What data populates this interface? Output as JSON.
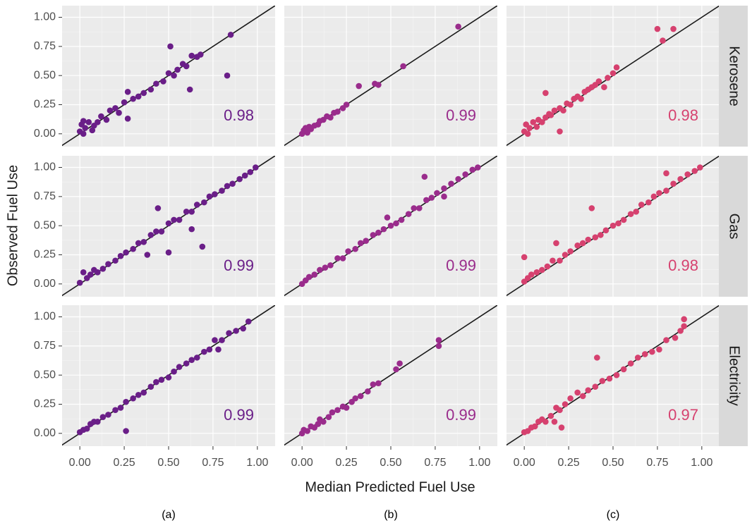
{
  "y_label": "Observed Fuel Use",
  "x_label": "Median Predicted Fuel Use",
  "row_labels": [
    "Kerosene",
    "Gas",
    "Electricity"
  ],
  "column_labels": [
    "(a)",
    "(b)",
    "(c)"
  ],
  "chart_data": [
    {
      "type": "scatter",
      "color": "#6a1e88",
      "annotation": "0.98",
      "x": [
        0,
        0.01,
        0.02,
        0.03,
        0.05,
        0.07,
        0.08,
        0.1,
        0.12,
        0.15,
        0.17,
        0.2,
        0.22,
        0.25,
        0.27,
        0.3,
        0.33,
        0.36,
        0.4,
        0.43,
        0.47,
        0.5,
        0.53,
        0.55,
        0.58,
        0.6,
        0.62,
        0.63,
        0.66,
        0.68,
        0.51,
        0.83,
        0.85,
        0.27,
        0.02
      ],
      "values": [
        0.02,
        0.08,
        0,
        0.05,
        0.1,
        0.03,
        0.07,
        0.1,
        0.15,
        0.12,
        0.2,
        0.22,
        0.18,
        0.27,
        0.36,
        0.3,
        0.32,
        0.35,
        0.38,
        0.43,
        0.45,
        0.52,
        0.5,
        0.55,
        0.6,
        0.58,
        0.38,
        0.67,
        0.66,
        0.68,
        0.75,
        0.5,
        0.85,
        0.13,
        0.11
      ],
      "xlim": [
        -0.1,
        1.1
      ],
      "ylim": [
        -0.11,
        1.1
      ],
      "xticks": [
        {
          "value": 0,
          "label": "0.00"
        },
        {
          "value": 0.25,
          "label": "0.25"
        },
        {
          "value": 0.5,
          "label": "0.50"
        },
        {
          "value": 0.75,
          "label": "0.75"
        },
        {
          "value": 1,
          "label": "1.00"
        }
      ],
      "yticks": [
        {
          "value": 0,
          "label": "0.00"
        },
        {
          "value": 0.25,
          "label": "0.25"
        },
        {
          "value": 0.5,
          "label": "0.50"
        },
        {
          "value": 0.75,
          "label": "0.75"
        },
        {
          "value": 1,
          "label": "1.00"
        }
      ]
    },
    {
      "type": "scatter",
      "color": "#9a2c8c",
      "annotation": "0.99",
      "x": [
        0,
        0.01,
        0.02,
        0.03,
        0.04,
        0.05,
        0.07,
        0.09,
        0.1,
        0.12,
        0.14,
        0.16,
        0.18,
        0.2,
        0.23,
        0.25,
        0.32,
        0.41,
        0.43,
        0.57,
        0.88
      ],
      "values": [
        0,
        0.03,
        0.05,
        0.01,
        0.06,
        0.04,
        0.07,
        0.08,
        0.11,
        0.12,
        0.15,
        0.14,
        0.18,
        0.19,
        0.22,
        0.25,
        0.41,
        0.43,
        0.42,
        0.58,
        0.92
      ],
      "xlim": [
        -0.1,
        1.1
      ],
      "ylim": [
        -0.11,
        1.1
      ],
      "xticks": [
        {
          "value": 0,
          "label": "0.00"
        },
        {
          "value": 0.25,
          "label": "0.25"
        },
        {
          "value": 0.5,
          "label": "0.50"
        },
        {
          "value": 0.75,
          "label": "0.75"
        },
        {
          "value": 1,
          "label": "1.00"
        }
      ],
      "yticks": [
        {
          "value": 0,
          "label": "0.00"
        },
        {
          "value": 0.25,
          "label": "0.25"
        },
        {
          "value": 0.5,
          "label": "0.50"
        },
        {
          "value": 0.75,
          "label": "0.75"
        },
        {
          "value": 1,
          "label": "1.00"
        }
      ]
    },
    {
      "type": "scatter",
      "color": "#d6416f",
      "annotation": "0.98",
      "x": [
        0,
        0.01,
        0.02,
        0.03,
        0.05,
        0.07,
        0.08,
        0.1,
        0.12,
        0.14,
        0.15,
        0.17,
        0.2,
        0.22,
        0.24,
        0.26,
        0.28,
        0.3,
        0.32,
        0.34,
        0.36,
        0.38,
        0.4,
        0.42,
        0.45,
        0.47,
        0.5,
        0.52,
        0.2,
        0.12,
        0.75,
        0.78,
        0.84
      ],
      "values": [
        0.02,
        0.08,
        0,
        0.05,
        0.1,
        0.06,
        0.12,
        0.1,
        0.14,
        0.17,
        0.16,
        0.2,
        0.22,
        0.2,
        0.26,
        0.25,
        0.3,
        0.32,
        0.3,
        0.36,
        0.38,
        0.4,
        0.42,
        0.45,
        0.4,
        0.48,
        0.52,
        0.57,
        0.02,
        0.35,
        0.9,
        0.8,
        0.9
      ],
      "xlim": [
        -0.1,
        1.1
      ],
      "ylim": [
        -0.11,
        1.1
      ],
      "xticks": [
        {
          "value": 0,
          "label": "0.00"
        },
        {
          "value": 0.25,
          "label": "0.25"
        },
        {
          "value": 0.5,
          "label": "0.50"
        },
        {
          "value": 0.75,
          "label": "0.75"
        },
        {
          "value": 1,
          "label": "1.00"
        }
      ],
      "yticks": [
        {
          "value": 0,
          "label": "0.00"
        },
        {
          "value": 0.25,
          "label": "0.25"
        },
        {
          "value": 0.5,
          "label": "0.50"
        },
        {
          "value": 0.75,
          "label": "0.75"
        },
        {
          "value": 1,
          "label": "1.00"
        }
      ]
    },
    {
      "type": "scatter",
      "color": "#6a1e88",
      "annotation": "0.99",
      "x": [
        0,
        0.02,
        0.04,
        0.06,
        0.08,
        0.1,
        0.13,
        0.16,
        0.2,
        0.23,
        0.26,
        0.3,
        0.33,
        0.36,
        0.4,
        0.43,
        0.46,
        0.5,
        0.53,
        0.56,
        0.6,
        0.63,
        0.66,
        0.7,
        0.73,
        0.76,
        0.8,
        0.83,
        0.86,
        0.9,
        0.93,
        0.96,
        0.99,
        0.44,
        0.69,
        0.5,
        0.38,
        0.63
      ],
      "values": [
        0.01,
        0.1,
        0.05,
        0.08,
        0.12,
        0.1,
        0.13,
        0.17,
        0.2,
        0.24,
        0.27,
        0.3,
        0.35,
        0.36,
        0.42,
        0.45,
        0.45,
        0.52,
        0.55,
        0.55,
        0.62,
        0.62,
        0.68,
        0.7,
        0.75,
        0.77,
        0.8,
        0.84,
        0.86,
        0.9,
        0.93,
        0.96,
        1,
        0.65,
        0.32,
        0.27,
        0.25,
        0.47
      ],
      "xlim": [
        -0.1,
        1.1
      ],
      "ylim": [
        -0.11,
        1.1
      ],
      "xticks": [
        {
          "value": 0,
          "label": "0.00"
        },
        {
          "value": 0.25,
          "label": "0.25"
        },
        {
          "value": 0.5,
          "label": "0.50"
        },
        {
          "value": 0.75,
          "label": "0.75"
        },
        {
          "value": 1,
          "label": "1.00"
        }
      ],
      "yticks": [
        {
          "value": 0,
          "label": "0.00"
        },
        {
          "value": 0.25,
          "label": "0.25"
        },
        {
          "value": 0.5,
          "label": "0.50"
        },
        {
          "value": 0.75,
          "label": "0.75"
        },
        {
          "value": 1,
          "label": "1.00"
        }
      ]
    },
    {
      "type": "scatter",
      "color": "#9a2c8c",
      "annotation": "0.99",
      "x": [
        0,
        0.02,
        0.04,
        0.07,
        0.1,
        0.13,
        0.16,
        0.2,
        0.23,
        0.26,
        0.3,
        0.33,
        0.36,
        0.4,
        0.43,
        0.46,
        0.5,
        0.53,
        0.56,
        0.6,
        0.63,
        0.66,
        0.7,
        0.73,
        0.76,
        0.8,
        0.84,
        0.88,
        0.92,
        0.96,
        0.99,
        0.69,
        0.8,
        0.48
      ],
      "values": [
        0,
        0.03,
        0.06,
        0.08,
        0.12,
        0.14,
        0.16,
        0.22,
        0.22,
        0.28,
        0.3,
        0.35,
        0.37,
        0.42,
        0.44,
        0.47,
        0.5,
        0.52,
        0.55,
        0.6,
        0.65,
        0.65,
        0.72,
        0.74,
        0.78,
        0.82,
        0.86,
        0.9,
        0.94,
        0.98,
        1,
        0.92,
        0.75,
        0.57
      ],
      "xlim": [
        -0.1,
        1.1
      ],
      "ylim": [
        -0.11,
        1.1
      ],
      "xticks": [
        {
          "value": 0,
          "label": "0.00"
        },
        {
          "value": 0.25,
          "label": "0.25"
        },
        {
          "value": 0.5,
          "label": "0.50"
        },
        {
          "value": 0.75,
          "label": "0.75"
        },
        {
          "value": 1,
          "label": "1.00"
        }
      ],
      "yticks": [
        {
          "value": 0,
          "label": "0.00"
        },
        {
          "value": 0.25,
          "label": "0.25"
        },
        {
          "value": 0.5,
          "label": "0.50"
        },
        {
          "value": 0.75,
          "label": "0.75"
        },
        {
          "value": 1,
          "label": "1.00"
        }
      ]
    },
    {
      "type": "scatter",
      "color": "#d6416f",
      "annotation": "0.98",
      "x": [
        0,
        0.02,
        0.04,
        0.07,
        0.1,
        0.13,
        0.16,
        0.2,
        0.23,
        0.26,
        0.3,
        0.33,
        0.36,
        0.4,
        0.43,
        0.46,
        0.5,
        0.53,
        0.56,
        0.6,
        0.63,
        0.66,
        0.7,
        0.73,
        0.76,
        0.8,
        0.84,
        0.88,
        0.92,
        0.96,
        0.99,
        0.0,
        0.38,
        0.8,
        0.18
      ],
      "values": [
        0.02,
        0.05,
        0.08,
        0.1,
        0.12,
        0.15,
        0.2,
        0.2,
        0.25,
        0.28,
        0.33,
        0.35,
        0.38,
        0.4,
        0.42,
        0.46,
        0.5,
        0.52,
        0.55,
        0.6,
        0.62,
        0.68,
        0.7,
        0.75,
        0.78,
        0.8,
        0.86,
        0.9,
        0.94,
        0.97,
        1,
        0.23,
        0.65,
        0.95,
        0.35
      ],
      "xlim": [
        -0.1,
        1.1
      ],
      "ylim": [
        -0.11,
        1.1
      ],
      "xticks": [
        {
          "value": 0,
          "label": "0.00"
        },
        {
          "value": 0.25,
          "label": "0.25"
        },
        {
          "value": 0.5,
          "label": "0.50"
        },
        {
          "value": 0.75,
          "label": "0.75"
        },
        {
          "value": 1,
          "label": "1.00"
        }
      ],
      "yticks": [
        {
          "value": 0,
          "label": "0.00"
        },
        {
          "value": 0.25,
          "label": "0.25"
        },
        {
          "value": 0.5,
          "label": "0.50"
        },
        {
          "value": 0.75,
          "label": "0.75"
        },
        {
          "value": 1,
          "label": "1.00"
        }
      ]
    },
    {
      "type": "scatter",
      "color": "#6a1e88",
      "annotation": "0.99",
      "x": [
        0,
        0.02,
        0.04,
        0.06,
        0.08,
        0.1,
        0.13,
        0.16,
        0.2,
        0.23,
        0.26,
        0.3,
        0.33,
        0.36,
        0.4,
        0.43,
        0.46,
        0.5,
        0.53,
        0.56,
        0.6,
        0.63,
        0.66,
        0.7,
        0.73,
        0.76,
        0.8,
        0.84,
        0.88,
        0.92,
        0.95,
        0.26,
        0.78
      ],
      "values": [
        0.01,
        0.03,
        0.04,
        0.08,
        0.1,
        0.1,
        0.14,
        0.16,
        0.2,
        0.22,
        0.27,
        0.3,
        0.33,
        0.35,
        0.4,
        0.44,
        0.46,
        0.48,
        0.53,
        0.57,
        0.6,
        0.63,
        0.65,
        0.7,
        0.72,
        0.8,
        0.8,
        0.86,
        0.88,
        0.9,
        0.96,
        0.02,
        0.72
      ],
      "xlim": [
        -0.1,
        1.1
      ],
      "ylim": [
        -0.11,
        1.1
      ],
      "xticks": [
        {
          "value": 0,
          "label": "0.00"
        },
        {
          "value": 0.25,
          "label": "0.25"
        },
        {
          "value": 0.5,
          "label": "0.50"
        },
        {
          "value": 0.75,
          "label": "0.75"
        },
        {
          "value": 1,
          "label": "1.00"
        }
      ],
      "yticks": [
        {
          "value": 0,
          "label": "0.00"
        },
        {
          "value": 0.25,
          "label": "0.25"
        },
        {
          "value": 0.5,
          "label": "0.50"
        },
        {
          "value": 0.75,
          "label": "0.75"
        },
        {
          "value": 1,
          "label": "1.00"
        }
      ]
    },
    {
      "type": "scatter",
      "color": "#9a2c8c",
      "annotation": "0.99",
      "x": [
        0,
        0.01,
        0.03,
        0.05,
        0.07,
        0.09,
        0.1,
        0.12,
        0.15,
        0.17,
        0.2,
        0.23,
        0.25,
        0.28,
        0.3,
        0.33,
        0.37,
        0.4,
        0.43,
        0.53,
        0.55,
        0.77,
        0.77
      ],
      "values": [
        0,
        0.03,
        0.02,
        0.06,
        0.05,
        0.08,
        0.12,
        0.1,
        0.14,
        0.18,
        0.2,
        0.23,
        0.22,
        0.27,
        0.3,
        0.32,
        0.36,
        0.42,
        0.43,
        0.55,
        0.6,
        0.8,
        0.75
      ],
      "xlim": [
        -0.1,
        1.1
      ],
      "ylim": [
        -0.11,
        1.1
      ],
      "xticks": [
        {
          "value": 0,
          "label": "0.00"
        },
        {
          "value": 0.25,
          "label": "0.25"
        },
        {
          "value": 0.5,
          "label": "0.50"
        },
        {
          "value": 0.75,
          "label": "0.75"
        },
        {
          "value": 1,
          "label": "1.00"
        }
      ],
      "yticks": [
        {
          "value": 0,
          "label": "0.00"
        },
        {
          "value": 0.25,
          "label": "0.25"
        },
        {
          "value": 0.5,
          "label": "0.50"
        },
        {
          "value": 0.75,
          "label": "0.75"
        },
        {
          "value": 1,
          "label": "1.00"
        }
      ]
    },
    {
      "type": "scatter",
      "color": "#d6416f",
      "annotation": "0.97",
      "x": [
        0,
        0.02,
        0.04,
        0.06,
        0.08,
        0.1,
        0.12,
        0.15,
        0.18,
        0.2,
        0.23,
        0.26,
        0.3,
        0.33,
        0.36,
        0.4,
        0.44,
        0.48,
        0.52,
        0.56,
        0.6,
        0.64,
        0.68,
        0.72,
        0.76,
        0.8,
        0.85,
        0.88,
        0.9,
        0.9,
        0.41,
        0.21,
        0.17
      ],
      "values": [
        0.01,
        0.02,
        0.05,
        0.06,
        0.1,
        0.12,
        0.1,
        0.15,
        0.22,
        0.2,
        0.25,
        0.3,
        0.35,
        0.32,
        0.37,
        0.4,
        0.45,
        0.47,
        0.5,
        0.55,
        0.6,
        0.65,
        0.68,
        0.7,
        0.72,
        0.8,
        0.82,
        0.88,
        0.98,
        0.92,
        0.65,
        0.05,
        0.1
      ],
      "xlim": [
        -0.1,
        1.1
      ],
      "ylim": [
        -0.11,
        1.1
      ],
      "xticks": [
        {
          "value": 0,
          "label": "0.00"
        },
        {
          "value": 0.25,
          "label": "0.25"
        },
        {
          "value": 0.5,
          "label": "0.50"
        },
        {
          "value": 0.75,
          "label": "0.75"
        },
        {
          "value": 1,
          "label": "1.00"
        }
      ],
      "yticks": [
        {
          "value": 0,
          "label": "0.00"
        },
        {
          "value": 0.25,
          "label": "0.25"
        },
        {
          "value": 0.5,
          "label": "0.50"
        },
        {
          "value": 0.75,
          "label": "0.75"
        },
        {
          "value": 1,
          "label": "1.00"
        }
      ]
    }
  ]
}
